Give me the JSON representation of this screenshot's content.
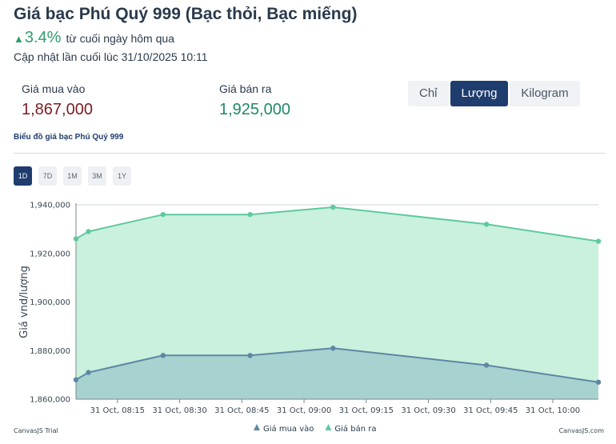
{
  "header": {
    "title": "Giá bạc Phú Quý 999 (Bạc thỏi, Bạc miếng)",
    "change_arrow": "▲",
    "change_percent": "3.4%",
    "change_since": "từ cuối ngày hôm qua",
    "last_updated": "Cập nhật lần cuối lúc 31/10/2025 10:11"
  },
  "prices": {
    "buy_label": "Giá mua vào",
    "buy_value": "1,867,000",
    "sell_label": "Giá bán ra",
    "sell_value": "1,925,000"
  },
  "unit_tabs": [
    {
      "label": "Chỉ",
      "active": false
    },
    {
      "label": "Lượng",
      "active": true
    },
    {
      "label": "Kilogram",
      "active": false
    }
  ],
  "chart_caption": "Biểu đồ giá bạc Phú Quý 999",
  "range_tabs": [
    {
      "label": "1D",
      "active": true
    },
    {
      "label": "7D",
      "active": false
    },
    {
      "label": "1M",
      "active": false
    },
    {
      "label": "3M",
      "active": false
    },
    {
      "label": "1Y",
      "active": false
    }
  ],
  "credits": {
    "left": "CanvasJS Trial",
    "right": "CanvasJS.com"
  },
  "colors": {
    "sell_line": "#5ec99f",
    "sell_fill": "#caf0de",
    "buy_line": "#5d87a3",
    "buy_fill": "#a7d2cf",
    "grid": "#cfd3d8"
  },
  "chart_data": {
    "type": "area",
    "ylabel": "Giá vnd/lượng",
    "xlabel": "",
    "ylim": [
      1860000,
      1940000
    ],
    "y_ticks": [
      1860000,
      1880000,
      1900000,
      1920000,
      1940000
    ],
    "y_tick_labels": [
      "1,860,000",
      "1,880,000",
      "1,900,000",
      "1,920,000",
      "1,940,000"
    ],
    "xlim": [
      "2025-10-31 08:05",
      "2025-10-31 10:11"
    ],
    "x_ticks": [
      "2025-10-31 08:15",
      "2025-10-31 08:30",
      "2025-10-31 08:45",
      "2025-10-31 09:00",
      "2025-10-31 09:15",
      "2025-10-31 09:30",
      "2025-10-31 09:45",
      "2025-10-31 10:00"
    ],
    "x_tick_labels": [
      "31 Oct, 08:15",
      "31 Oct, 08:30",
      "31 Oct, 08:45",
      "31 Oct, 09:00",
      "31 Oct, 09:15",
      "31 Oct, 09:30",
      "31 Oct, 09:45",
      "31 Oct, 10:00"
    ],
    "grid": true,
    "legend_position": "bottom",
    "series": [
      {
        "name": "Giá bán ra",
        "x": [
          "2025-10-31 08:05",
          "2025-10-31 08:08",
          "2025-10-31 08:26",
          "2025-10-31 08:47",
          "2025-10-31 09:07",
          "2025-10-31 09:44",
          "2025-10-31 10:11"
        ],
        "values": [
          1926000,
          1929000,
          1936000,
          1936000,
          1939000,
          1932000,
          1925000
        ]
      },
      {
        "name": "Giá mua vào",
        "x": [
          "2025-10-31 08:05",
          "2025-10-31 08:08",
          "2025-10-31 08:26",
          "2025-10-31 08:47",
          "2025-10-31 09:07",
          "2025-10-31 09:44",
          "2025-10-31 10:11"
        ],
        "values": [
          1868000,
          1871000,
          1878000,
          1878000,
          1881000,
          1874000,
          1867000
        ]
      }
    ]
  }
}
